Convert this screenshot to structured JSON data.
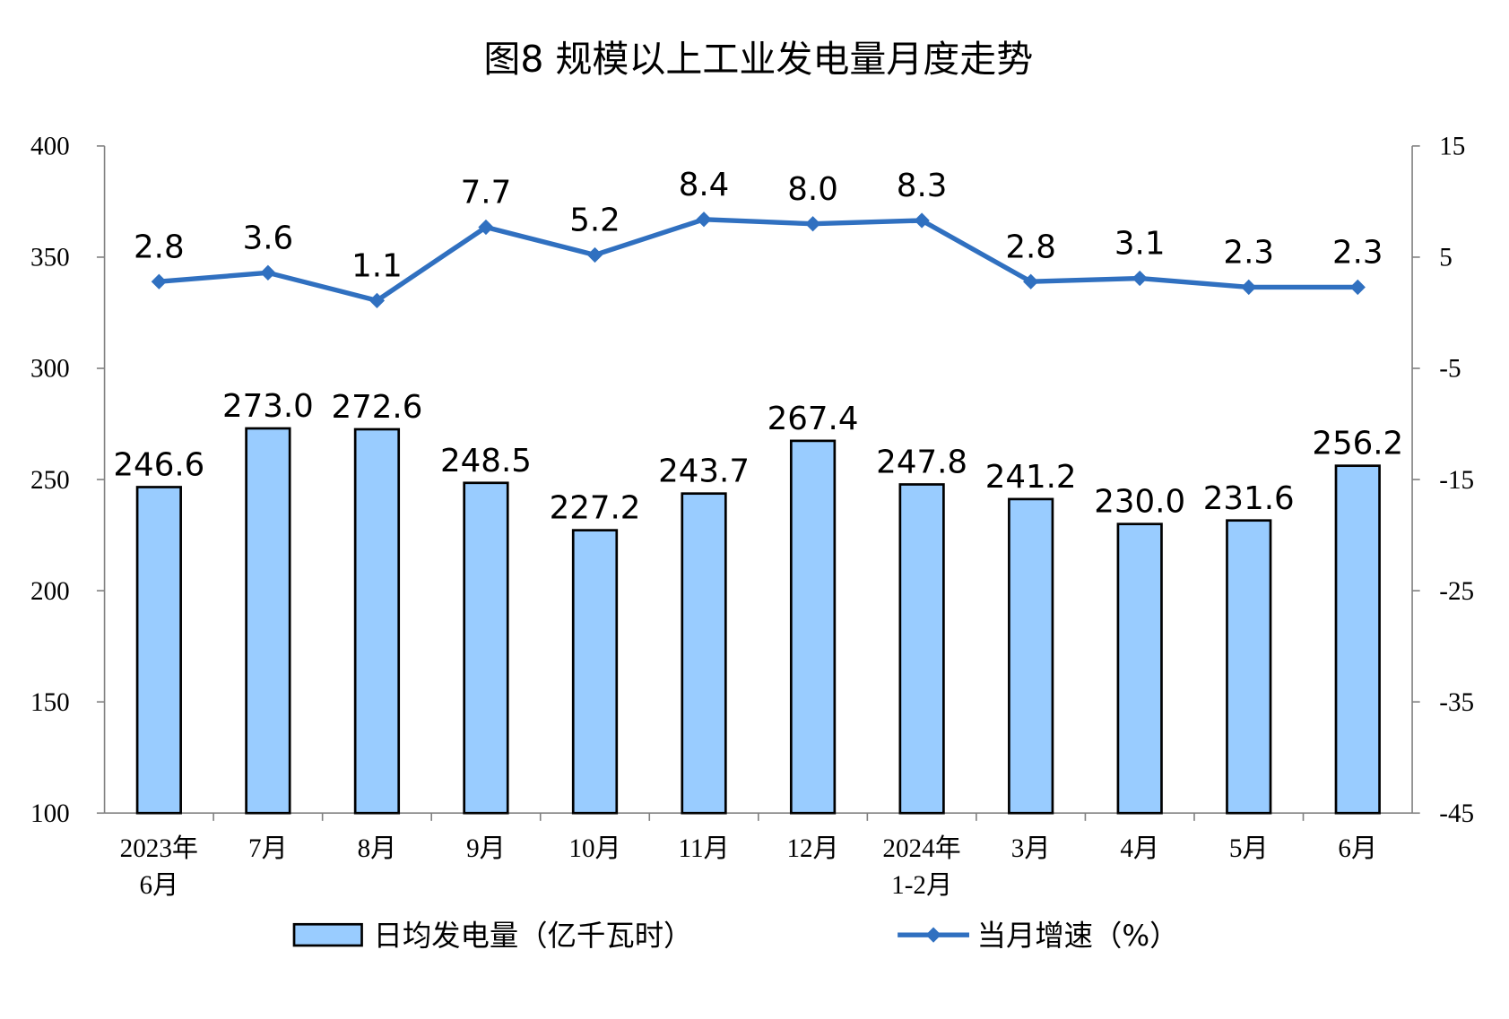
{
  "chart_data": {
    "type": "bar+line",
    "title": "图8  规模以上工业发电量月度走势",
    "categories": [
      "2023年\n6月",
      "7月",
      "8月",
      "9月",
      "10月",
      "11月",
      "12月",
      "2024年\n1-2月",
      "3月",
      "4月",
      "5月",
      "6月"
    ],
    "series": [
      {
        "name": "日均发电量（亿千瓦时）",
        "type": "bar",
        "axis": "left",
        "color": "#99CCFF",
        "values": [
          246.6,
          273.0,
          272.6,
          248.5,
          227.2,
          243.7,
          267.4,
          247.8,
          241.2,
          230.0,
          231.6,
          256.2
        ]
      },
      {
        "name": "当月增速（%）",
        "type": "line",
        "axis": "right",
        "color": "#3070C0",
        "values": [
          2.8,
          3.6,
          1.1,
          7.7,
          5.2,
          8.4,
          8.0,
          8.3,
          2.8,
          3.1,
          2.3,
          2.3
        ]
      }
    ],
    "y_left": {
      "range": [
        100,
        400
      ],
      "ticks": [
        100,
        150,
        200,
        250,
        300,
        350,
        400
      ]
    },
    "y_right": {
      "range": [
        -45,
        15
      ],
      "ticks": [
        -45,
        -35,
        -25,
        -15,
        -5,
        5,
        15
      ]
    },
    "grid": false,
    "legend_position": "bottom"
  }
}
